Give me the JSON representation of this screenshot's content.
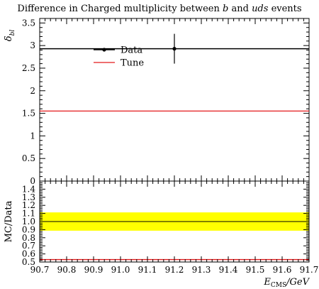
{
  "chart_data": [
    {
      "type": "line",
      "panel": "main",
      "title": "Difference in Charged multiplicity between b and uds events",
      "title_parts": [
        {
          "text": "Difference in Charged multiplicity between ",
          "italic": false
        },
        {
          "text": "b",
          "italic": true
        },
        {
          "text": " and ",
          "italic": false
        },
        {
          "text": "uds",
          "italic": true
        },
        {
          "text": " events",
          "italic": false
        }
      ],
      "ylabel": "δ",
      "ylabel_sub": "bl",
      "xlim": [
        90.7,
        91.7
      ],
      "ylim": [
        0,
        3.6
      ],
      "yticks": [
        "0",
        "0.5",
        "1",
        "1.5",
        "2",
        "2.5",
        "3",
        "3.5"
      ],
      "series": [
        {
          "name": "Data",
          "kind": "points",
          "color": "#000000",
          "x": [
            91.2
          ],
          "y": [
            2.93
          ],
          "yerr_low": [
            0.33
          ],
          "yerr_high": [
            0.33
          ],
          "xerr": [
            0.5
          ]
        },
        {
          "name": "Tune",
          "kind": "line",
          "color": "#e41a1c",
          "x": [
            90.7,
            91.7
          ],
          "y": [
            1.55,
            1.55
          ]
        }
      ],
      "legend": "top-left"
    },
    {
      "type": "line",
      "panel": "ratio",
      "ylabel": "MC/Data",
      "xlabel": "E",
      "xlabel_sub": "CMS",
      "xlabel_unit": "/GeV",
      "xlim": [
        90.7,
        91.7
      ],
      "ylim": [
        0.5,
        1.5
      ],
      "xticks": [
        "90.7",
        "90.8",
        "90.9",
        "91.0",
        "91.1",
        "91.2",
        "91.3",
        "91.4",
        "91.5",
        "91.6",
        "91.7"
      ],
      "yticks": [
        "0.5",
        "0.6",
        "0.7",
        "0.8",
        "0.9",
        "1.0",
        "1.1",
        "1.2",
        "1.3",
        "1.4"
      ],
      "band": {
        "low": 0.887,
        "high": 1.113,
        "color": "#ffff00"
      },
      "series": [
        {
          "name": "Data",
          "color": "#000000",
          "x": [
            90.7,
            91.7
          ],
          "y": [
            1.0,
            1.0
          ]
        },
        {
          "name": "Tune",
          "color": "#e41a1c",
          "x": [
            90.7,
            91.7
          ],
          "y": [
            0.53,
            0.53
          ]
        }
      ]
    }
  ]
}
